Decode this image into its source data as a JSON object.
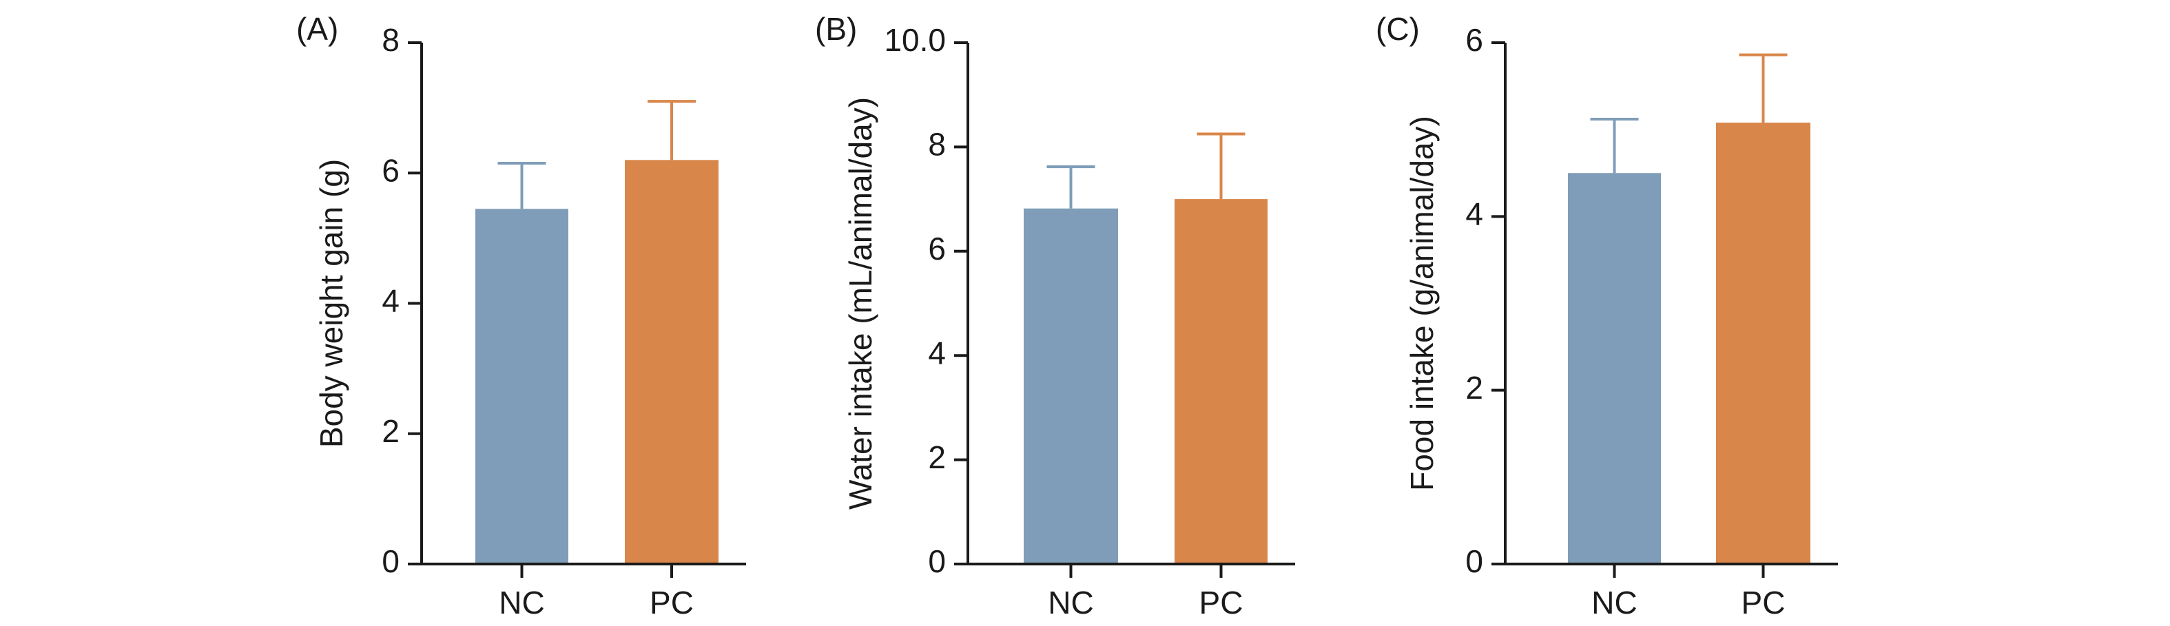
{
  "colors": {
    "NC": "#7f9db8",
    "PC": "#d9864a",
    "axis": "#1a1a1a"
  },
  "chart_data": [
    {
      "type": "bar",
      "panel_label": "(A)",
      "categories": [
        "NC",
        "PC"
      ],
      "values": [
        5.45,
        6.2
      ],
      "errors": [
        0.7,
        0.9
      ],
      "ylabel": "Body weight gain (g)",
      "xlabel": "",
      "ylim": [
        0,
        8
      ],
      "yticks": [
        0,
        2,
        4,
        6,
        8
      ],
      "ytick_labels": [
        "0",
        "2",
        "4",
        "6",
        "8"
      ]
    },
    {
      "type": "bar",
      "panel_label": "(B)",
      "categories": [
        "NC",
        "PC"
      ],
      "values": [
        6.82,
        7.0
      ],
      "errors": [
        0.8,
        1.25
      ],
      "ylabel": "Water intake (mL/animal/day)",
      "xlabel": "",
      "ylim": [
        0,
        10
      ],
      "yticks": [
        0,
        2,
        4,
        6,
        8,
        10
      ],
      "ytick_labels": [
        "0",
        "2",
        "4",
        "6",
        "8",
        "10.0"
      ]
    },
    {
      "type": "bar",
      "panel_label": "(C)",
      "categories": [
        "NC",
        "PC"
      ],
      "values": [
        4.5,
        5.08
      ],
      "errors": [
        0.62,
        0.78
      ],
      "ylabel": "Food intake (g/animal/day)",
      "xlabel": "",
      "ylim": [
        0,
        6
      ],
      "yticks": [
        0,
        2,
        4,
        6
      ],
      "ytick_labels": [
        "0",
        "2",
        "4",
        "6"
      ]
    }
  ]
}
